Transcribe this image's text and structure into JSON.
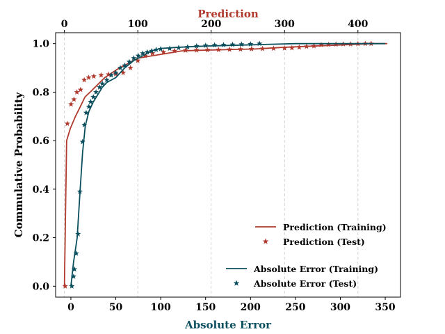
{
  "colors": {
    "prediction": "#b03a2e",
    "error": "#0b4f5e",
    "grid": "#c8c8c8"
  },
  "chart_data": {
    "type": "line",
    "xlabel": "Absolute Error",
    "x2label": "Prediction",
    "ylabel": "Commulative Probability",
    "xlim": [
      -17,
      367
    ],
    "x2lim": [
      -12,
      458
    ],
    "ylim": [
      -0.045,
      1.045
    ],
    "xticks": [
      0,
      50,
      100,
      150,
      200,
      250,
      300,
      350
    ],
    "x2ticks": [
      0,
      100,
      200,
      300,
      400
    ],
    "yticks": [
      "0.0",
      "0.2",
      "0.4",
      "0.6",
      "0.8",
      "1.0"
    ],
    "grid": "vertical dashed lines at top-axis ticks",
    "legend_position": "lower-right",
    "series": [
      {
        "name": "Prediction (Training)",
        "axis": "top",
        "style": "line",
        "points": [
          [
            0,
            0
          ],
          [
            3,
            0.6
          ],
          [
            8,
            0.65
          ],
          [
            15,
            0.7
          ],
          [
            20,
            0.73
          ],
          [
            28,
            0.78
          ],
          [
            35,
            0.8
          ],
          [
            45,
            0.83
          ],
          [
            55,
            0.86
          ],
          [
            65,
            0.88
          ],
          [
            75,
            0.9
          ],
          [
            85,
            0.915
          ],
          [
            100,
            0.94
          ],
          [
            120,
            0.95
          ],
          [
            140,
            0.96
          ],
          [
            160,
            0.97
          ],
          [
            180,
            0.972
          ],
          [
            220,
            0.975
          ],
          [
            260,
            0.978
          ],
          [
            300,
            0.985
          ],
          [
            340,
            0.99
          ],
          [
            380,
            0.995
          ],
          [
            420,
            1.0
          ],
          [
            440,
            1.0
          ]
        ]
      },
      {
        "name": "Prediction (Test)",
        "axis": "top",
        "style": "markers",
        "points": [
          [
            1,
            0
          ],
          [
            4,
            0.67
          ],
          [
            9,
            0.75
          ],
          [
            13,
            0.77
          ],
          [
            17,
            0.8
          ],
          [
            22,
            0.81
          ],
          [
            27,
            0.85
          ],
          [
            33,
            0.86
          ],
          [
            40,
            0.865
          ],
          [
            50,
            0.87
          ],
          [
            60,
            0.873
          ],
          [
            70,
            0.875
          ],
          [
            80,
            0.88
          ],
          [
            90,
            0.9
          ],
          [
            100,
            0.93
          ],
          [
            110,
            0.95
          ],
          [
            120,
            0.96
          ],
          [
            135,
            0.965
          ],
          [
            150,
            0.97
          ],
          [
            165,
            0.972
          ],
          [
            180,
            0.973
          ],
          [
            195,
            0.974
          ],
          [
            210,
            0.975
          ],
          [
            225,
            0.976
          ],
          [
            240,
            0.977
          ],
          [
            255,
            0.978
          ],
          [
            270,
            0.979
          ],
          [
            285,
            0.98
          ],
          [
            300,
            0.981
          ],
          [
            310,
            0.982
          ],
          [
            320,
            0.985
          ],
          [
            330,
            0.988
          ],
          [
            340,
            0.99
          ],
          [
            350,
            0.995
          ],
          [
            360,
            0.996
          ],
          [
            370,
            0.997
          ],
          [
            380,
            0.998
          ],
          [
            390,
            0.998
          ],
          [
            400,
            0.999
          ],
          [
            410,
            1.0
          ],
          [
            418,
            1.0
          ]
        ]
      },
      {
        "name": "Absolute Error (Training)",
        "axis": "bottom",
        "style": "line",
        "points": [
          [
            0,
            0
          ],
          [
            3,
            0.1
          ],
          [
            7,
            0.2
          ],
          [
            10,
            0.38
          ],
          [
            13,
            0.55
          ],
          [
            16,
            0.66
          ],
          [
            20,
            0.72
          ],
          [
            25,
            0.76
          ],
          [
            30,
            0.79
          ],
          [
            35,
            0.82
          ],
          [
            40,
            0.84
          ],
          [
            45,
            0.85
          ],
          [
            50,
            0.86
          ],
          [
            55,
            0.88
          ],
          [
            60,
            0.9
          ],
          [
            70,
            0.93
          ],
          [
            80,
            0.95
          ],
          [
            90,
            0.97
          ],
          [
            100,
            0.98
          ],
          [
            120,
            0.985
          ],
          [
            150,
            0.99
          ],
          [
            200,
            0.995
          ],
          [
            250,
            1.0
          ],
          [
            300,
            1.0
          ],
          [
            350,
            1.0
          ]
        ]
      },
      {
        "name": "Absolute Error (Test)",
        "axis": "bottom",
        "style": "markers",
        "points": [
          [
            1,
            0
          ],
          [
            3,
            0.04
          ],
          [
            4,
            0.07
          ],
          [
            6,
            0.135
          ],
          [
            8,
            0.215
          ],
          [
            10,
            0.39
          ],
          [
            13,
            0.595
          ],
          [
            15,
            0.665
          ],
          [
            17,
            0.715
          ],
          [
            20,
            0.74
          ],
          [
            22,
            0.76
          ],
          [
            25,
            0.78
          ],
          [
            28,
            0.8
          ],
          [
            32,
            0.82
          ],
          [
            35,
            0.835
          ],
          [
            40,
            0.85
          ],
          [
            45,
            0.87
          ],
          [
            50,
            0.88
          ],
          [
            55,
            0.9
          ],
          [
            60,
            0.91
          ],
          [
            65,
            0.925
          ],
          [
            70,
            0.94
          ],
          [
            75,
            0.95
          ],
          [
            80,
            0.96
          ],
          [
            85,
            0.965
          ],
          [
            90,
            0.97
          ],
          [
            95,
            0.975
          ],
          [
            100,
            0.978
          ],
          [
            110,
            0.98
          ],
          [
            120,
            0.983
          ],
          [
            130,
            0.986
          ],
          [
            140,
            0.99
          ],
          [
            150,
            0.992
          ],
          [
            160,
            0.994
          ],
          [
            170,
            0.995
          ],
          [
            180,
            0.996
          ],
          [
            190,
            0.997
          ],
          [
            200,
            0.998
          ],
          [
            210,
            1.0
          ]
        ]
      }
    ]
  }
}
